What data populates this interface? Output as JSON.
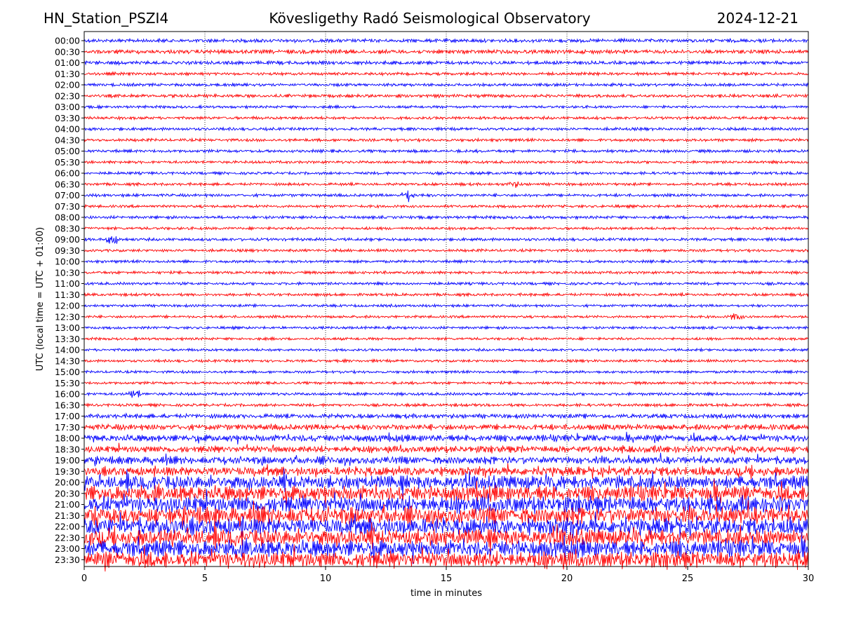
{
  "chart_data": {
    "type": "line",
    "title": "Kövesligethy Radó Seismological Observatory",
    "station": "HN_Station_PSZI4",
    "date": "2024-12-21",
    "xlabel": "time in minutes",
    "ylabel": "UTC (local time = UTC + 01:00)",
    "xlim": [
      0,
      30
    ],
    "xticks": [
      0,
      5,
      10,
      15,
      20,
      25,
      30
    ],
    "grid": "vertical dotted",
    "colors": [
      "#0000ff",
      "#ff0000"
    ],
    "traces": [
      "00:00",
      "00:30",
      "01:00",
      "01:30",
      "02:00",
      "02:30",
      "03:00",
      "03:30",
      "04:00",
      "04:30",
      "05:00",
      "05:30",
      "06:00",
      "06:30",
      "07:00",
      "07:30",
      "08:00",
      "08:30",
      "09:00",
      "09:30",
      "10:00",
      "10:30",
      "11:00",
      "11:30",
      "12:00",
      "12:30",
      "13:00",
      "13:30",
      "14:00",
      "14:30",
      "15:00",
      "15:30",
      "16:00",
      "16:30",
      "17:00",
      "17:30",
      "18:00",
      "18:30",
      "19:00",
      "19:30",
      "20:00",
      "20:30",
      "21:00",
      "21:30",
      "22:00",
      "22:30",
      "23:00",
      "23:30"
    ],
    "noise_level": [
      2.5,
      2.8,
      2.4,
      2.0,
      2.0,
      2.2,
      1.8,
      2.0,
      2.0,
      2.0,
      2.0,
      1.9,
      1.9,
      1.9,
      2.0,
      1.9,
      2.0,
      1.9,
      2.0,
      1.9,
      1.9,
      1.9,
      1.9,
      1.9,
      1.8,
      1.8,
      1.8,
      1.8,
      1.8,
      1.8,
      1.8,
      1.8,
      2.0,
      2.0,
      3.0,
      4.0,
      4.5,
      4.5,
      5.0,
      6.0,
      9.0,
      10.0,
      11.0,
      11.0,
      11.0,
      11.0,
      11.0,
      11.0
    ],
    "events": [
      {
        "trace": "07:00",
        "minute": 13.4,
        "amplitude": 8
      },
      {
        "trace": "09:00",
        "minute": 1.2,
        "amplitude": 7
      },
      {
        "trace": "16:00",
        "minute": 2.1,
        "amplitude": 6
      },
      {
        "trace": "12:30",
        "minute": 27.0,
        "amplitude": 5
      },
      {
        "trace": "06:30",
        "minute": 17.8,
        "amplitude": 4
      }
    ]
  }
}
